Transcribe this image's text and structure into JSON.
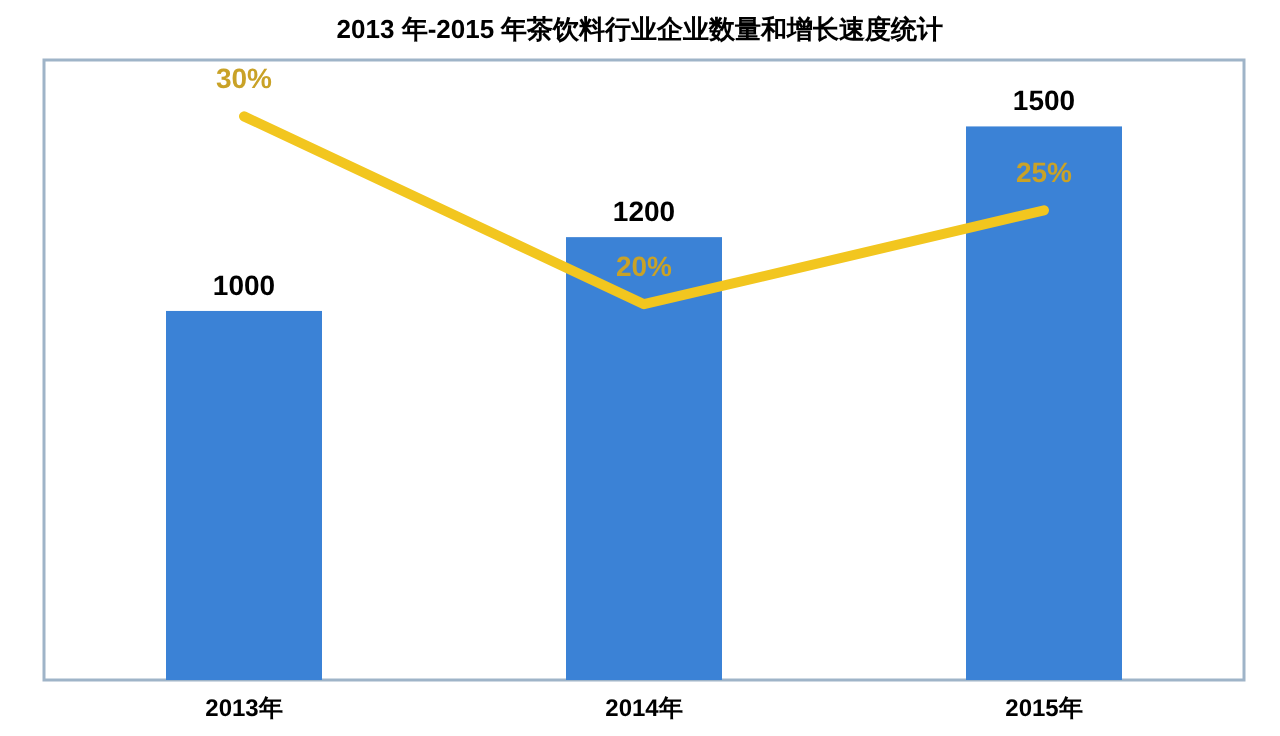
{
  "chart_data": {
    "type": "bar",
    "title": "2013 年-2015 年茶饮料行业企业数量和增长速度统计",
    "categories": [
      "2013年",
      "2014年",
      "2015年"
    ],
    "data_labels": true,
    "grid": false,
    "series": [
      {
        "color": "#3b82d6",
        "values": [
          1000,
          1200,
          1500
        ]
      },
      {
        "type": "line",
        "axis": "y2",
        "color": "#f2c61f",
        "values": [
          30,
          20,
          25
        ],
        "value_labels": [
          "30%",
          "20%",
          "25%"
        ]
      }
    ]
  }
}
